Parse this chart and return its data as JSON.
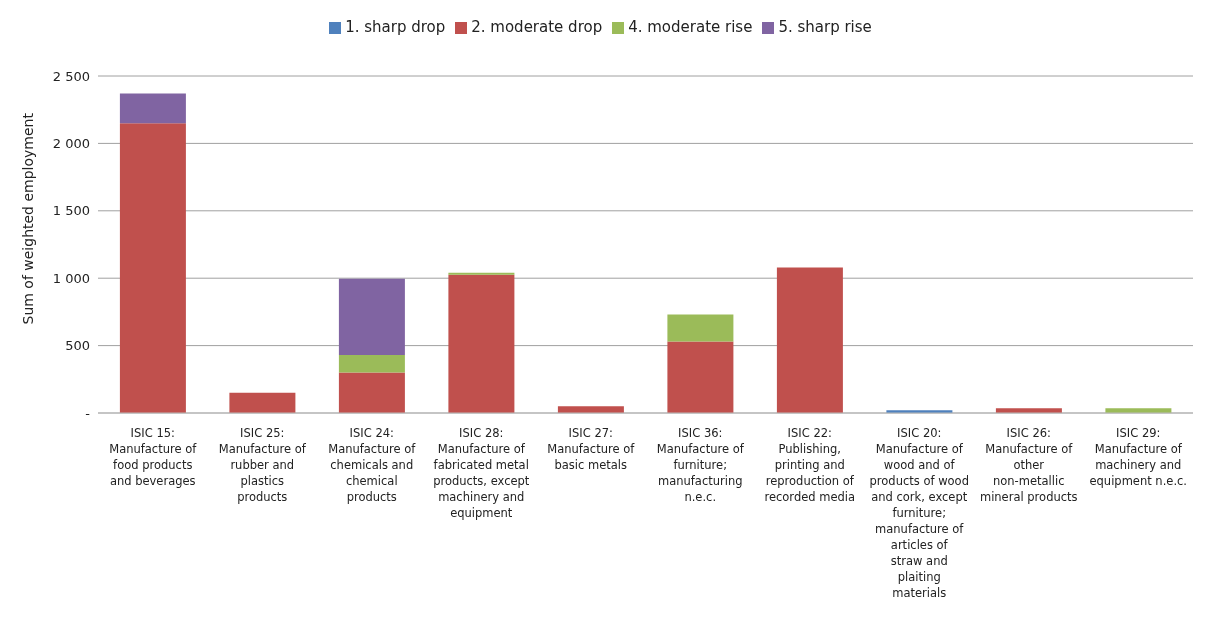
{
  "chart_data": {
    "type": "bar",
    "stacked": true,
    "ylabel": "Sum of weighted employment",
    "categories": [
      "ISIC 15: Manufacture of food products and beverages",
      "ISIC 25: Manufacture of rubber and plastics products",
      "ISIC 24: Manufacture of chemicals and chemical products",
      "ISIC 28: Manufacture of fabricated metal products, except machinery and equipment",
      "ISIC 27: Manufacture of basic metals",
      "ISIC 36: Manufacture of furniture; manufacturing n.e.c.",
      "ISIC 22: Publishing, printing and reproduction of recorded media",
      "ISIC 20: Manufacture of wood and of products of wood and cork, except furniture; manufacture of articles of straw and plaiting materials",
      "ISIC 26: Manufacture of other non-metallic mineral products",
      "ISIC 29: Manufacture of machinery and equipment n.e.c."
    ],
    "series": [
      {
        "name": "1. sharp drop",
        "color": "#4f81bd",
        "values": [
          null,
          null,
          null,
          null,
          null,
          null,
          null,
          20,
          null,
          null
        ]
      },
      {
        "name": "2. moderate drop",
        "color": "#c0504d",
        "values": [
          2150,
          150,
          300,
          1025,
          50,
          530,
          1080,
          null,
          35,
          null
        ]
      },
      {
        "name": "4. moderate rise",
        "color": "#9bbb59",
        "values": [
          null,
          null,
          130,
          15,
          null,
          200,
          null,
          null,
          null,
          35
        ]
      },
      {
        "name": "5. sharp rise",
        "color": "#8064a2",
        "values": [
          220,
          null,
          565,
          null,
          null,
          null,
          null,
          null,
          null,
          null
        ]
      }
    ],
    "ylim": [
      0,
      2500
    ],
    "yticks": [
      {
        "value": 0,
        "label": "-"
      },
      500,
      {
        "value": 1000,
        "label": "1 000"
      },
      {
        "value": 1500,
        "label": "1 500"
      },
      {
        "value": 2000,
        "label": "2 000"
      },
      {
        "value": 2500,
        "label": "2 500"
      }
    ],
    "grid": "y",
    "legend": "top"
  }
}
